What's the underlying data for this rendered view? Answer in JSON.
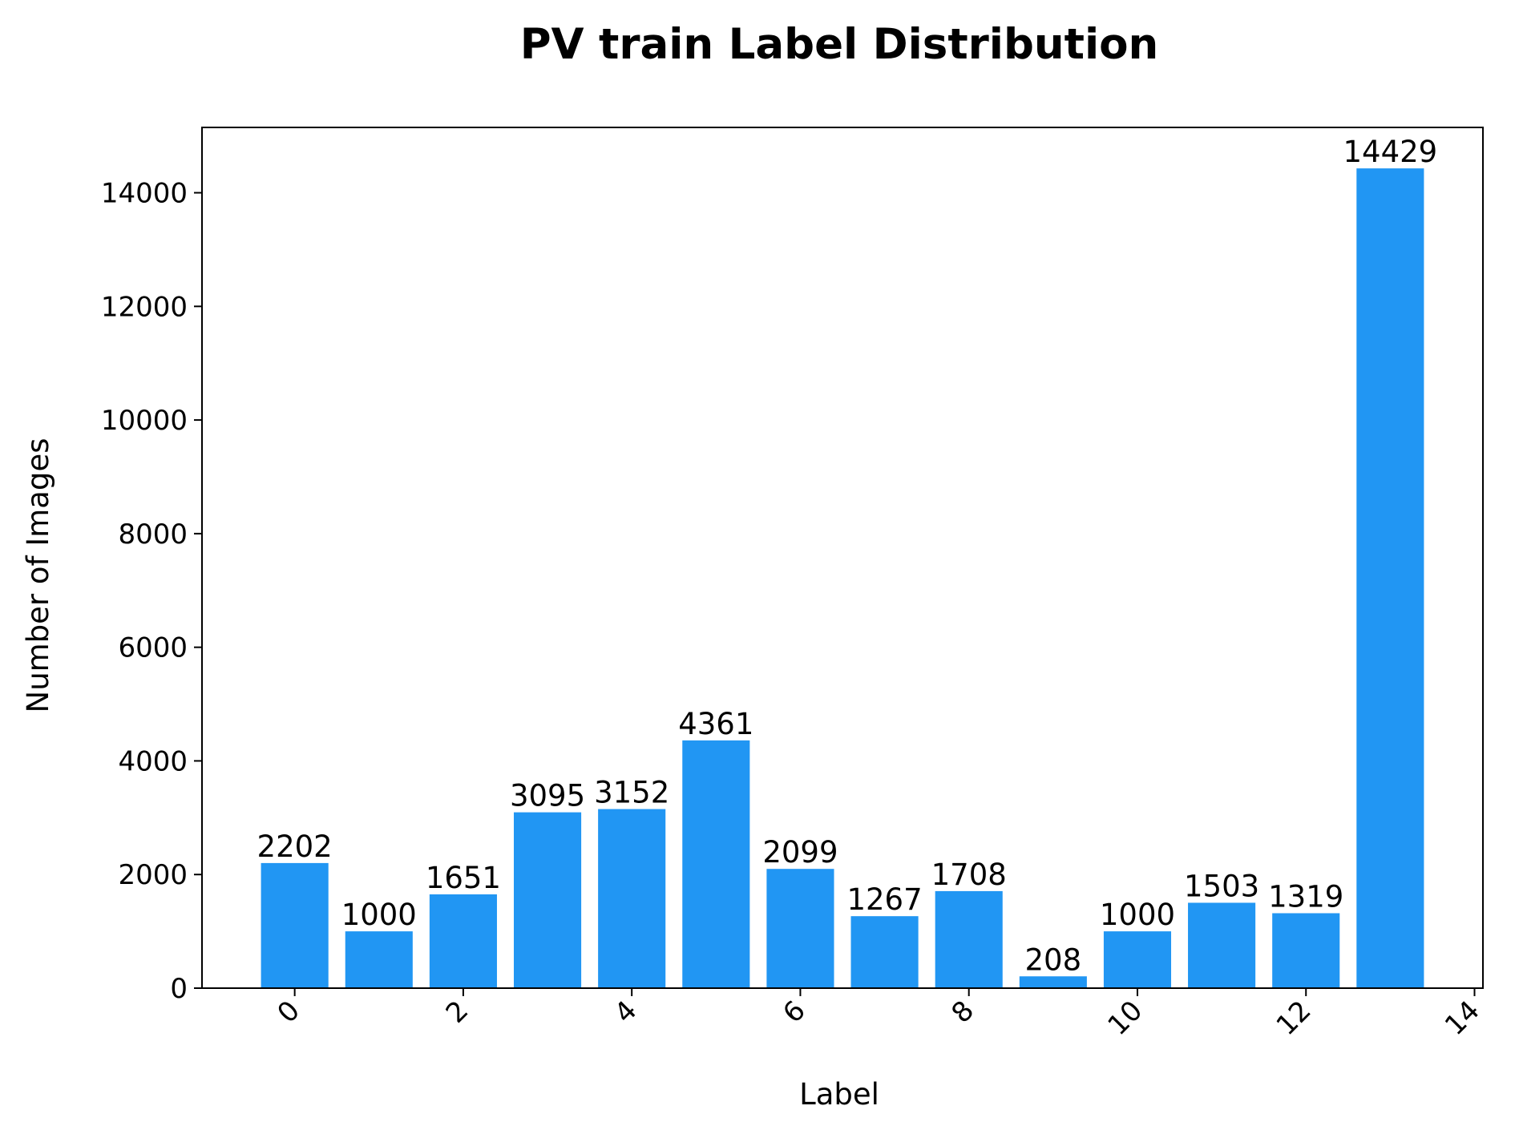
{
  "colors": {
    "bar": "#2196F3",
    "axis": "#000000",
    "background": "#ffffff"
  },
  "chart_data": {
    "type": "bar",
    "title": "PV train Label Distribution",
    "xlabel": "Label",
    "ylabel": "Number of Images",
    "categories": [
      0,
      1,
      2,
      3,
      4,
      5,
      6,
      7,
      8,
      9,
      10,
      11,
      12,
      13
    ],
    "values": [
      2202,
      1000,
      1651,
      3095,
      3152,
      4361,
      2099,
      1267,
      1708,
      208,
      1000,
      1503,
      1319,
      14429
    ],
    "xlim": [
      -1.1,
      14.1
    ],
    "ylim": [
      0,
      15150
    ],
    "xticks": [
      0,
      2,
      4,
      6,
      8,
      10,
      12,
      14
    ],
    "yticks": [
      0,
      2000,
      4000,
      6000,
      8000,
      10000,
      12000,
      14000
    ],
    "grid": false,
    "legend": "none"
  }
}
